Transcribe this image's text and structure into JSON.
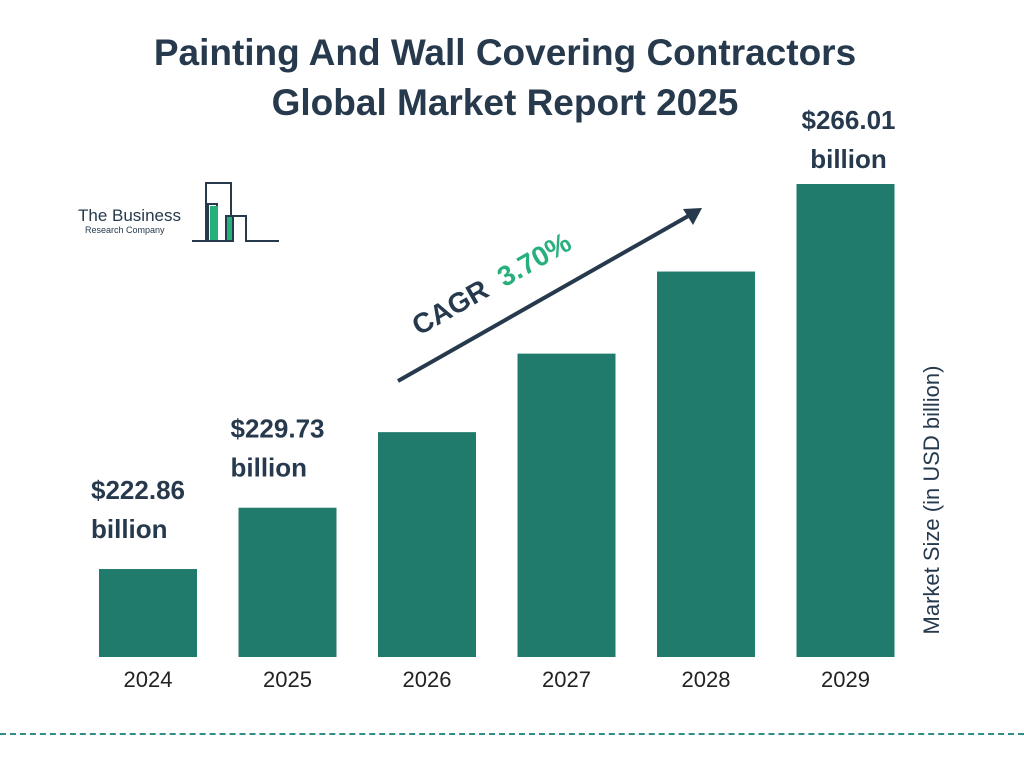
{
  "title_lines": [
    "Painting And Wall Covering Contractors",
    "Global Market Report 2025"
  ],
  "logo": {
    "line1": "The Business",
    "line2": "Research Company"
  },
  "cagr": {
    "label": "CAGR",
    "value": "3.70%"
  },
  "colors": {
    "bar": "#217b6c",
    "text": "#26394d",
    "accent": "#27b07c",
    "divider": "#2f8f86"
  },
  "chart_data": {
    "type": "bar",
    "categories": [
      "2024",
      "2025",
      "2026",
      "2027",
      "2028",
      "2029"
    ],
    "values": [
      222.86,
      229.73,
      238.2,
      247.0,
      256.2,
      266.01
    ],
    "data_labels": [
      [
        "$222.86",
        "billion"
      ],
      [
        "$229.73",
        "billion"
      ],
      null,
      null,
      null,
      [
        "$266.01",
        "billion"
      ]
    ],
    "ylabel": "Market Size (in USD billion)",
    "xlabel": "",
    "ylim": [
      213,
      272
    ],
    "grid": false,
    "legend": "none"
  }
}
